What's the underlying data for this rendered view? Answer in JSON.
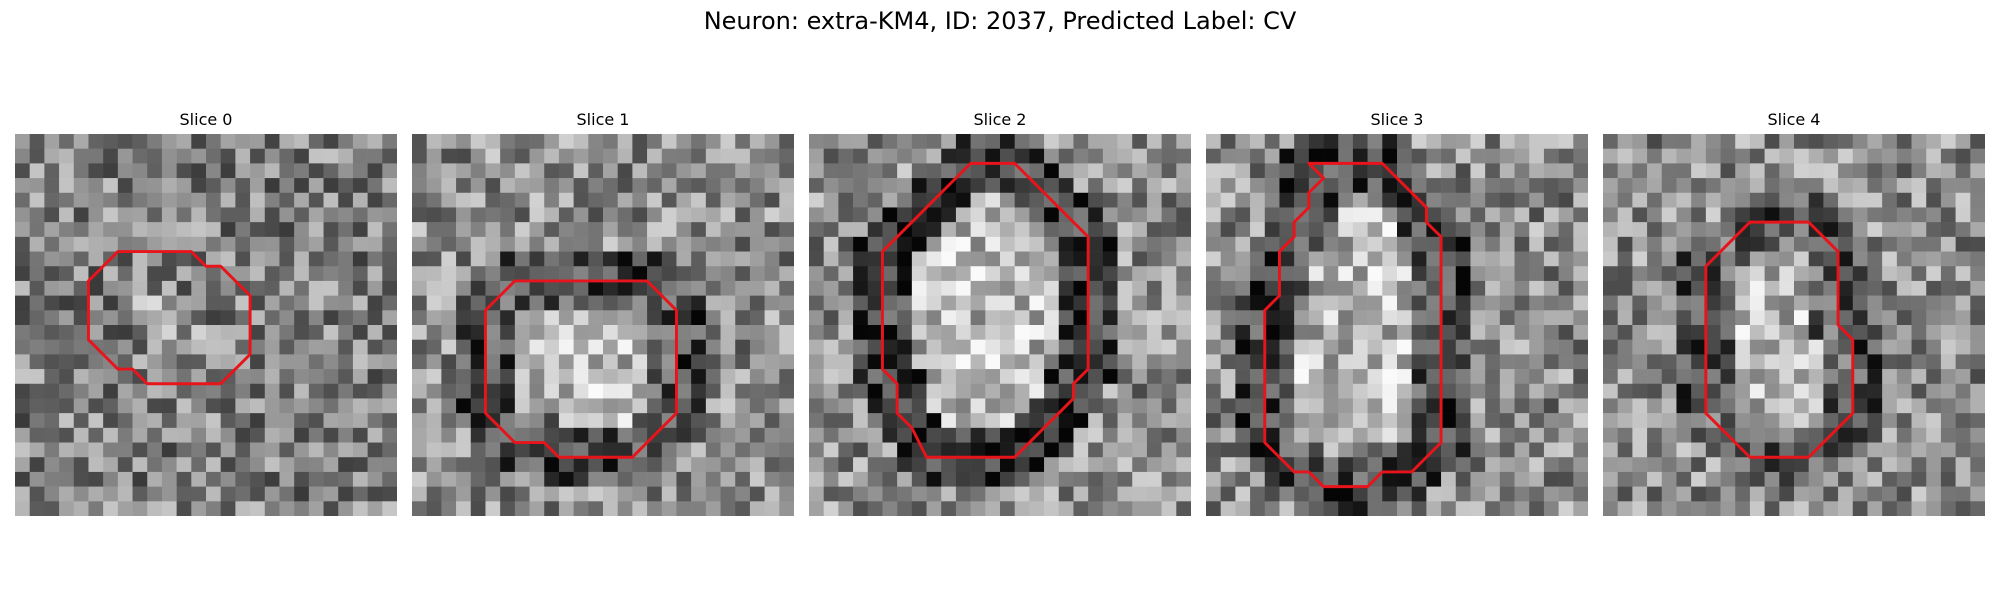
{
  "figure": {
    "title": "Neuron: extra-KM4, ID: 2037, Predicted Label: CV"
  },
  "colors": {
    "contour": "#e8141b"
  },
  "slices": [
    {
      "title": "Slice 0",
      "contour": [
        [
          10,
          8
        ],
        [
          12,
          8
        ],
        [
          13,
          9
        ],
        [
          14,
          9
        ],
        [
          15,
          10
        ],
        [
          16,
          11
        ],
        [
          16,
          15
        ],
        [
          15,
          16
        ],
        [
          14,
          17
        ],
        [
          12,
          17
        ],
        [
          11,
          17
        ],
        [
          10,
          17
        ],
        [
          9,
          17
        ],
        [
          8,
          16
        ],
        [
          7,
          16
        ],
        [
          6,
          15
        ],
        [
          5,
          14
        ],
        [
          5,
          10
        ],
        [
          6,
          9
        ],
        [
          7,
          8
        ]
      ],
      "dark_ring": 0.0
    },
    {
      "title": "Slice 1",
      "contour": [
        [
          9,
          10
        ],
        [
          16,
          10
        ],
        [
          18,
          12
        ],
        [
          18,
          19
        ],
        [
          17,
          20
        ],
        [
          16,
          21
        ],
        [
          15,
          22
        ],
        [
          10,
          22
        ],
        [
          9,
          21
        ],
        [
          7,
          21
        ],
        [
          6,
          20
        ],
        [
          5,
          19
        ],
        [
          5,
          12
        ],
        [
          6,
          11
        ],
        [
          7,
          10
        ]
      ],
      "dark_ring": 0.45
    },
    {
      "title": "Slice 2",
      "contour": [
        [
          11,
          2
        ],
        [
          14,
          2
        ],
        [
          18,
          6
        ],
        [
          19,
          7
        ],
        [
          19,
          16
        ],
        [
          18,
          17
        ],
        [
          18,
          18
        ],
        [
          17,
          19
        ],
        [
          16,
          20
        ],
        [
          15,
          21
        ],
        [
          14,
          22
        ],
        [
          8,
          22
        ],
        [
          7,
          20
        ],
        [
          6,
          19
        ],
        [
          6,
          17
        ],
        [
          5,
          16
        ],
        [
          5,
          8
        ],
        [
          7,
          6
        ],
        [
          8,
          5
        ]
      ],
      "dark_ring": 0.55
    },
    {
      "title": "Slice 3",
      "contour": [
        [
          7,
          2
        ],
        [
          12,
          2
        ],
        [
          15,
          5
        ],
        [
          15,
          6
        ],
        [
          16,
          7
        ],
        [
          16,
          21
        ],
        [
          15,
          22
        ],
        [
          14,
          23
        ],
        [
          12,
          23
        ],
        [
          11,
          24
        ],
        [
          8,
          24
        ],
        [
          7,
          23
        ],
        [
          6,
          23
        ],
        [
          5,
          22
        ],
        [
          4,
          21
        ],
        [
          4,
          12
        ],
        [
          5,
          11
        ],
        [
          5,
          8
        ],
        [
          6,
          7
        ],
        [
          6,
          6
        ],
        [
          7,
          5
        ],
        [
          7,
          4
        ],
        [
          8,
          3
        ]
      ],
      "dark_ring": 0.5
    },
    {
      "title": "Slice 4",
      "contour": [
        [
          10,
          6
        ],
        [
          14,
          6
        ],
        [
          16,
          8
        ],
        [
          16,
          11
        ],
        [
          16,
          13
        ],
        [
          17,
          14
        ],
        [
          17,
          19
        ],
        [
          16,
          20
        ],
        [
          15,
          21
        ],
        [
          14,
          22
        ],
        [
          10,
          22
        ],
        [
          9,
          21
        ],
        [
          8,
          20
        ],
        [
          7,
          19
        ],
        [
          7,
          14
        ],
        [
          7,
          9
        ],
        [
          8,
          8
        ],
        [
          9,
          7
        ]
      ],
      "dark_ring": 0.4
    }
  ]
}
